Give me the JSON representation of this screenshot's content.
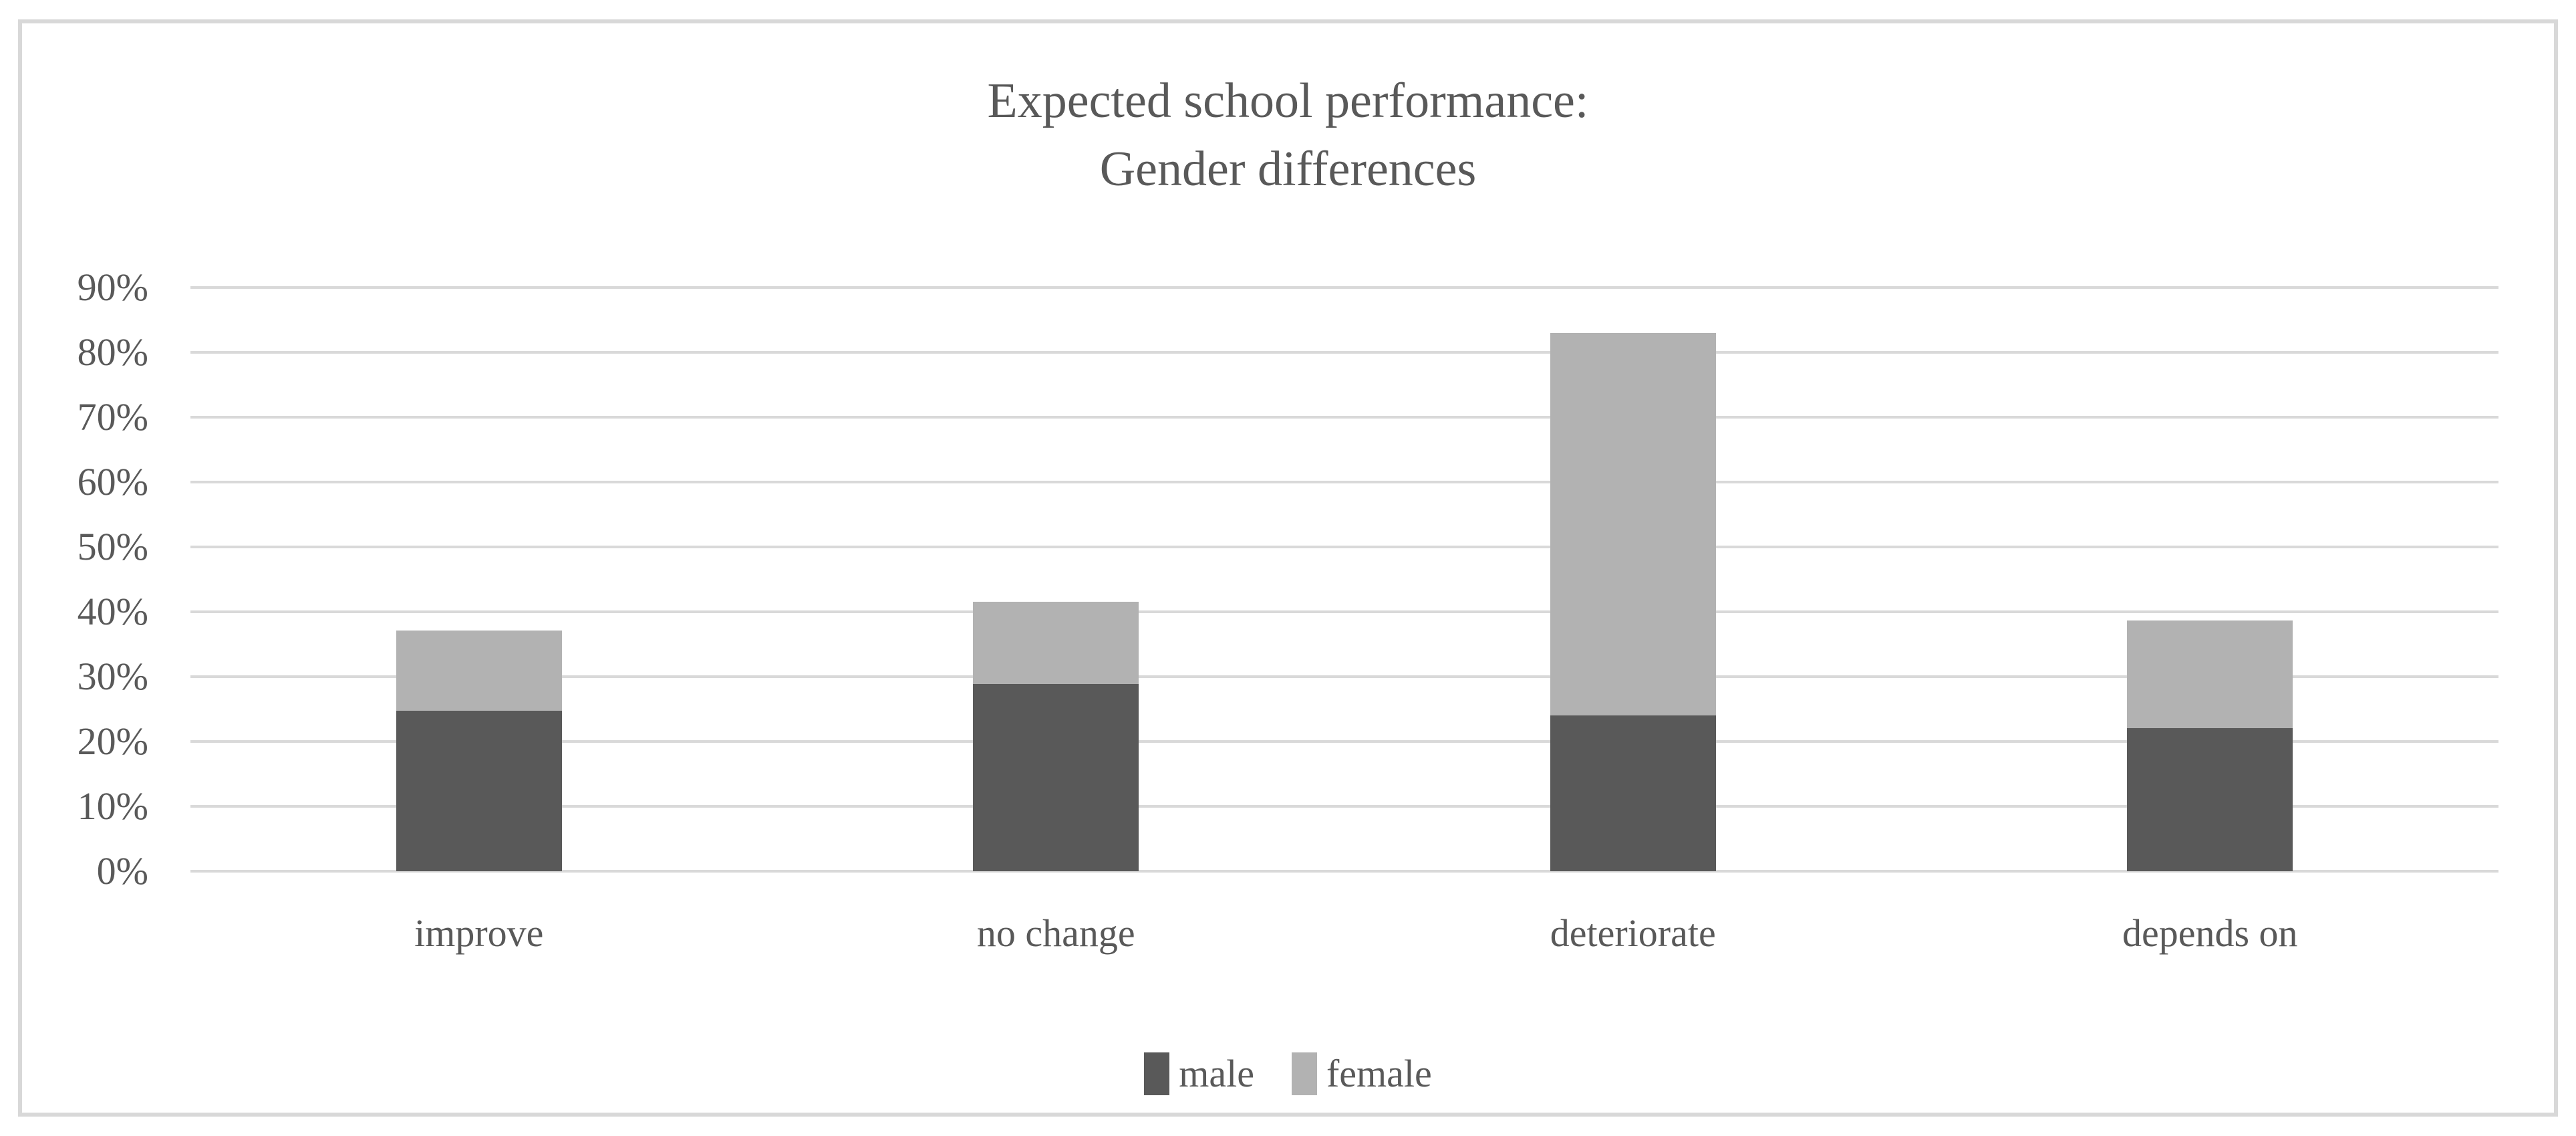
{
  "chart_data": {
    "type": "bar",
    "stacked": true,
    "title_lines": [
      "Expected school performance:",
      "Gender differences"
    ],
    "categories": [
      "improve",
      "no change",
      "deteriorate",
      "depends on"
    ],
    "series": [
      {
        "name": "male",
        "color": "#595959",
        "values": [
          24.7,
          28.9,
          24.0,
          22.1
        ]
      },
      {
        "name": "female",
        "color": "#b2b2b2",
        "values": [
          12.4,
          12.6,
          59.0,
          16.6
        ]
      }
    ],
    "stack_totals": [
      37.1,
      41.5,
      83.0,
      38.7
    ],
    "xlabel": "",
    "ylabel": "",
    "ylim": [
      0,
      90
    ],
    "ytick_values": [
      0,
      10,
      20,
      30,
      40,
      50,
      60,
      70,
      80,
      90
    ],
    "ytick_labels": [
      "0%",
      "10%",
      "20%",
      "30%",
      "40%",
      "50%",
      "60%",
      "70%",
      "80%",
      "90%"
    ],
    "grid": true,
    "gridline_color": "#d9d9d9",
    "frame_border_color": "#d8d8d8",
    "text_color": "#595959",
    "legend_position": "bottom",
    "legend_labels": [
      "male",
      "female"
    ]
  }
}
